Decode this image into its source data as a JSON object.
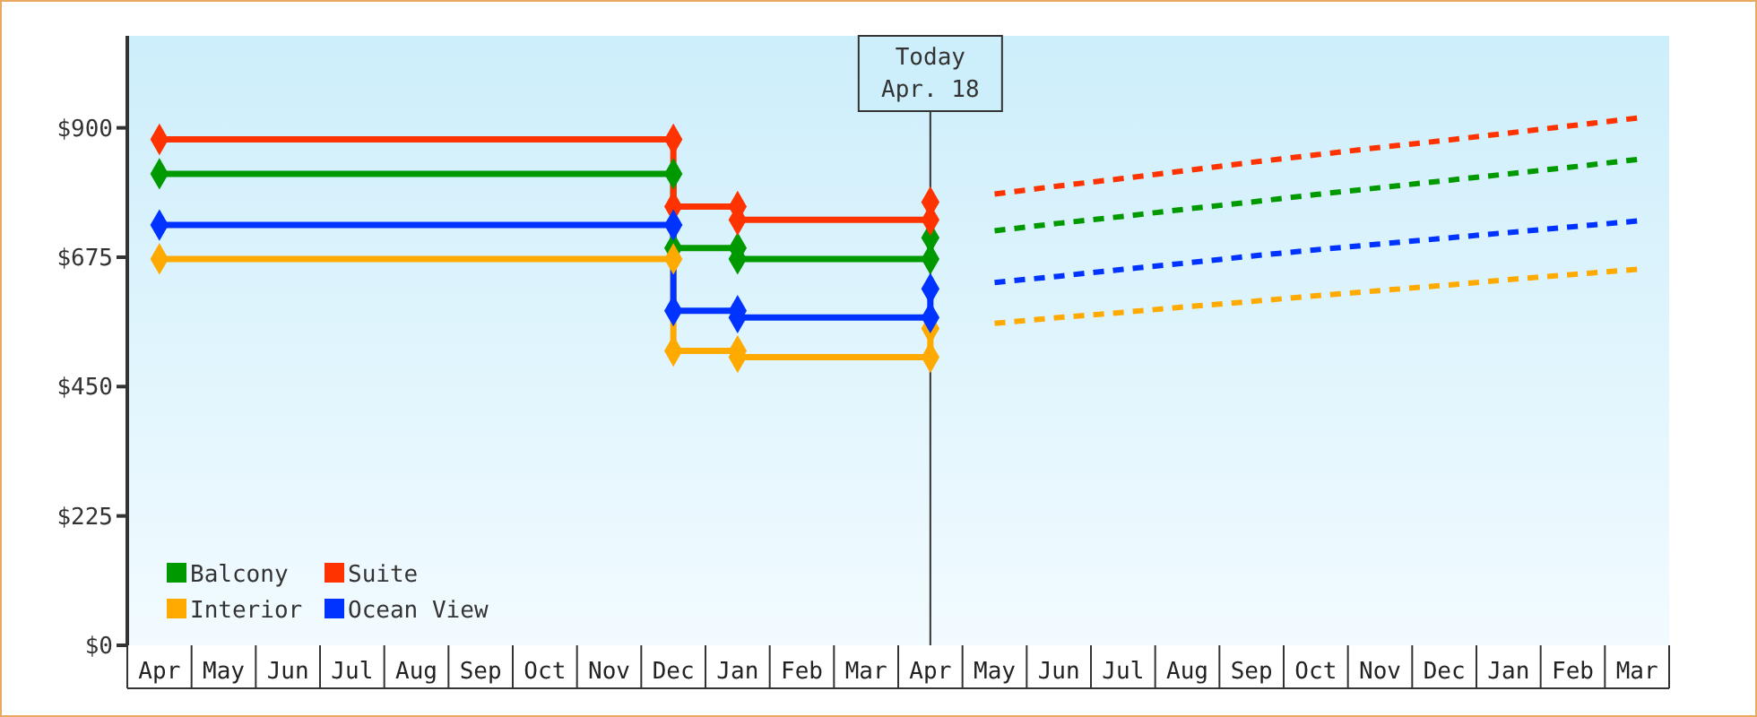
{
  "chart_data": {
    "type": "step",
    "categories": [
      "Apr",
      "May",
      "Jun",
      "Jul",
      "Aug",
      "Sep",
      "Oct",
      "Nov",
      "Dec",
      "Jan",
      "Feb",
      "Mar",
      "Apr",
      "May",
      "Jun",
      "Jul",
      "Aug",
      "Sep",
      "Oct",
      "Nov",
      "Dec",
      "Jan",
      "Feb",
      "Mar"
    ],
    "ylim": [
      0,
      1060
    ],
    "yticks": [
      {
        "value": 0,
        "label": "$0"
      },
      {
        "value": 225,
        "label": "$225"
      },
      {
        "value": 450,
        "label": "$450"
      },
      {
        "value": 675,
        "label": "$675"
      },
      {
        "value": 900,
        "label": "$900"
      }
    ],
    "legend": "bottom left",
    "series": [
      {
        "name": "Balcony",
        "color": "#009900",
        "marker": "none",
        "values": [
          820,
          820,
          820,
          820,
          820,
          820,
          820,
          820,
          691,
          672,
          672,
          672,
          709,
          null,
          null,
          null,
          null,
          null,
          null,
          null,
          null,
          null,
          null,
          null
        ]
      },
      {
        "name": "Suite",
        "color": "#ff3300",
        "marker": "none",
        "values": [
          880,
          880,
          880,
          880,
          880,
          880,
          880,
          880,
          763,
          740,
          740,
          740,
          771,
          null,
          null,
          null,
          null,
          null,
          null,
          null,
          null,
          null,
          null,
          null
        ]
      },
      {
        "name": "Interior",
        "color": "#ffaa00",
        "marker": "none",
        "values": [
          672,
          672,
          672,
          672,
          672,
          672,
          672,
          672,
          512,
          501,
          501,
          501,
          551,
          null,
          null,
          null,
          null,
          null,
          null,
          null,
          null,
          null,
          null,
          null
        ]
      },
      {
        "name": "Ocean View",
        "color": "#0033ff",
        "marker": "none",
        "values": [
          731,
          731,
          731,
          731,
          731,
          731,
          731,
          731,
          582,
          570,
          570,
          570,
          620,
          null,
          null,
          null,
          null,
          null,
          null,
          null,
          null,
          null,
          null,
          null
        ]
      },
      {
        "type": "line",
        "line_style": "dashed",
        "marker": "none",
        "color": "#009900",
        "values": [
          null,
          null,
          null,
          null,
          null,
          null,
          null,
          null,
          null,
          null,
          null,
          null,
          null,
          721,
          734,
          746,
          759,
          771,
          784,
          796,
          808,
          820,
          832,
          845
        ]
      },
      {
        "type": "line",
        "line_style": "dashed",
        "marker": "none",
        "color": "#ff3300",
        "values": [
          null,
          null,
          null,
          null,
          null,
          null,
          null,
          null,
          null,
          null,
          null,
          null,
          null,
          785,
          799,
          812,
          826,
          840,
          853,
          866,
          878,
          891,
          904,
          917
        ]
      },
      {
        "type": "line",
        "line_style": "dashed",
        "marker": "none",
        "color": "#ffaa00",
        "values": [
          null,
          null,
          null,
          null,
          null,
          null,
          null,
          null,
          null,
          null,
          null,
          null,
          null,
          560,
          570,
          579,
          589,
          598,
          608,
          617,
          626,
          636,
          645,
          654
        ]
      },
      {
        "type": "line",
        "line_style": "dashed",
        "marker": "none",
        "color": "#0033ff",
        "values": [
          null,
          null,
          null,
          null,
          null,
          null,
          null,
          null,
          null,
          null,
          null,
          null,
          null,
          631,
          642,
          654,
          665,
          677,
          688,
          698,
          708,
          718,
          728,
          738
        ]
      },
      {
        "type": "scatter",
        "marker": "diamond",
        "color": "#009900",
        "values": [
          820,
          null,
          null,
          null,
          null,
          null,
          null,
          null,
          691,
          672,
          null,
          null,
          709,
          null,
          null,
          null,
          null,
          null,
          null,
          null,
          null,
          null,
          null,
          null
        ]
      },
      {
        "type": "scatter",
        "marker": "diamond",
        "color": "#009900",
        "values": [
          null,
          null,
          null,
          null,
          null,
          null,
          null,
          null,
          820,
          691,
          null,
          null,
          672,
          null,
          null,
          null,
          null,
          null,
          null,
          null,
          null,
          null,
          null,
          null
        ]
      },
      {
        "type": "scatter",
        "marker": "diamond",
        "color": "#ff3300",
        "values": [
          880,
          null,
          null,
          null,
          null,
          null,
          null,
          null,
          763,
          740,
          null,
          null,
          771,
          null,
          null,
          null,
          null,
          null,
          null,
          null,
          null,
          null,
          null,
          null
        ]
      },
      {
        "type": "scatter",
        "marker": "diamond",
        "color": "#ff3300",
        "values": [
          null,
          null,
          null,
          null,
          null,
          null,
          null,
          null,
          880,
          763,
          null,
          null,
          740,
          null,
          null,
          null,
          null,
          null,
          null,
          null,
          null,
          null,
          null,
          null
        ]
      },
      {
        "type": "scatter",
        "marker": "diamond",
        "color": "#ffaa00",
        "values": [
          672,
          null,
          null,
          null,
          null,
          null,
          null,
          null,
          512,
          501,
          null,
          null,
          551,
          null,
          null,
          null,
          null,
          null,
          null,
          null,
          null,
          null,
          null,
          null
        ]
      },
      {
        "type": "scatter",
        "marker": "diamond",
        "color": "#ffaa00",
        "values": [
          null,
          null,
          null,
          null,
          null,
          null,
          null,
          null,
          672,
          512,
          null,
          null,
          501,
          null,
          null,
          null,
          null,
          null,
          null,
          null,
          null,
          null,
          null,
          null
        ]
      },
      {
        "type": "scatter",
        "marker": "diamond",
        "color": "#0033ff",
        "values": [
          731,
          null,
          null,
          null,
          null,
          null,
          null,
          null,
          582,
          570,
          null,
          null,
          620,
          null,
          null,
          null,
          null,
          null,
          null,
          null,
          null,
          null,
          null,
          null
        ]
      },
      {
        "type": "scatter",
        "marker": "diamond",
        "color": "#0033ff",
        "values": [
          null,
          null,
          null,
          null,
          null,
          null,
          null,
          null,
          731,
          582,
          null,
          null,
          570,
          null,
          null,
          null,
          null,
          null,
          null,
          null,
          null,
          null,
          null,
          null
        ]
      }
    ],
    "annotations": [
      "Today\nApr. 18"
    ]
  }
}
